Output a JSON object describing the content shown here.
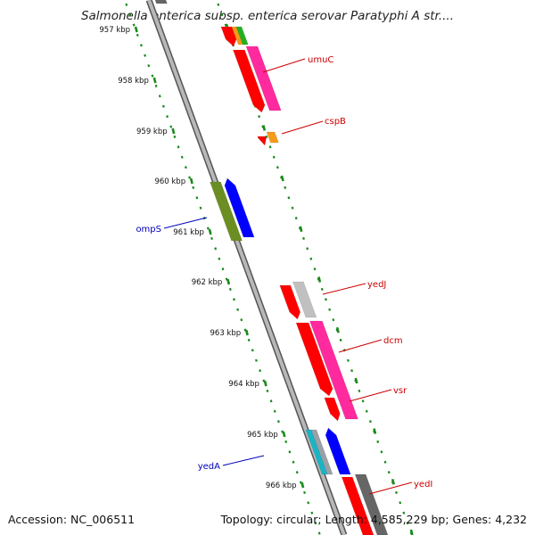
{
  "title": "Salmonella enterica subsp. enterica serovar Paratyphi A str....",
  "footer": {
    "accession": "Accession: NC_006511",
    "summary": "Topology: circular; Length: 4,585,229 bp; Genes: 4,232"
  },
  "ruler": {
    "labels": [
      "957 kbp",
      "958 kbp",
      "959 kbp",
      "960 kbp",
      "961 kbp",
      "962 kbp",
      "963 kbp",
      "964 kbp",
      "965 kbp",
      "966 kbp"
    ]
  },
  "colors": {
    "ruler": "#1a8a1a",
    "backbone": "#8a8a8a",
    "forward_label": "#cc0000",
    "reverse_label": "#0000bb"
  },
  "genes": [
    {
      "name": "umuC",
      "strand": "forward"
    },
    {
      "name": "cspB",
      "strand": "forward"
    },
    {
      "name": "ompS",
      "strand": "reverse"
    },
    {
      "name": "yedJ",
      "strand": "forward"
    },
    {
      "name": "dcm",
      "strand": "forward"
    },
    {
      "name": "vsr",
      "strand": "forward"
    },
    {
      "name": "yedA",
      "strand": "reverse"
    },
    {
      "name": "yedI",
      "strand": "forward"
    }
  ]
}
